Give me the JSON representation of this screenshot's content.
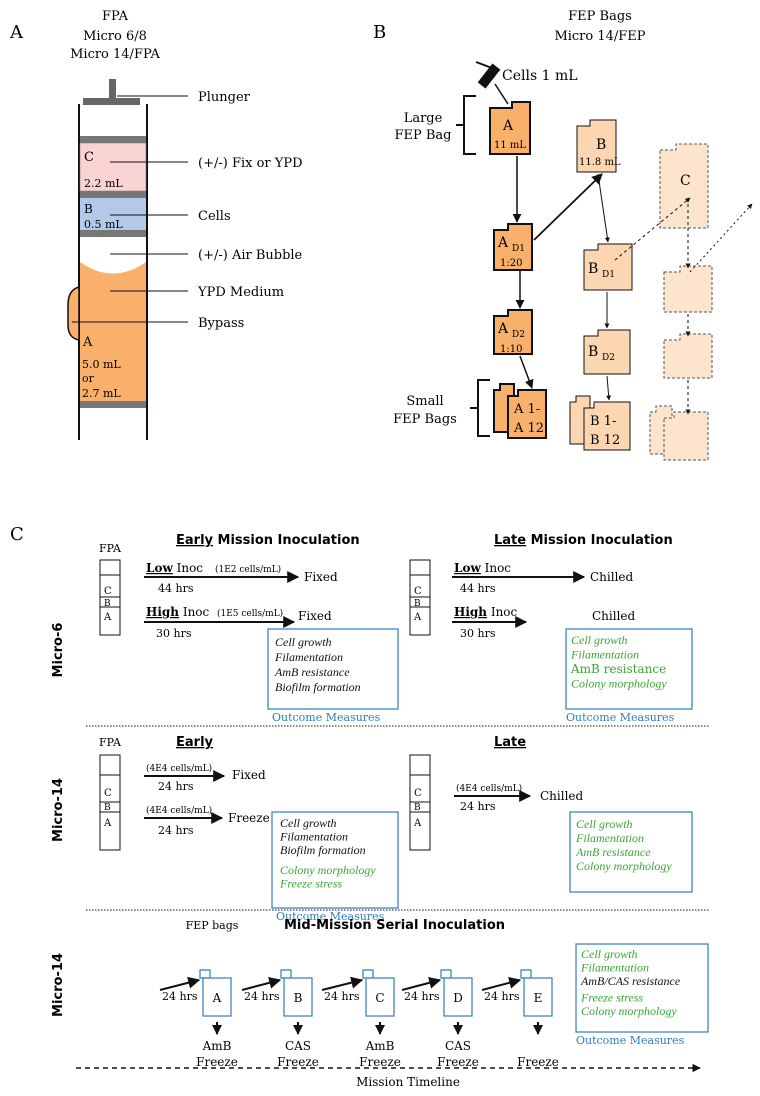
{
  "panel_a": {
    "letter": "A",
    "title": "FPA",
    "subtitle1": "Micro 6/8",
    "subtitle2": "Micro 14/FPA",
    "chamber_c_letter": "C",
    "chamber_c_volume": "2.2 mL",
    "chamber_b_letter": "B",
    "chamber_b_volume": "0.5 mL",
    "chamber_a_letter": "A",
    "chamber_a_volume1": "5.0 mL",
    "chamber_a_volume2": "or",
    "chamber_a_volume3": "2.7 mL",
    "labels": {
      "plunger": "Plunger",
      "fix": "(+/-) Fix or YPD",
      "cells": "Cells",
      "bubble": "(+/-) Air Bubble",
      "medium": "YPD Medium",
      "bypass": "Bypass"
    }
  },
  "panel_b": {
    "letter": "B",
    "title": "FEP Bags",
    "subtitle": "Micro 14/FEP",
    "syringe_label": "Cells 1 mL",
    "large_label1": "Large",
    "large_label2": "FEP Bag",
    "small_label1": "Small",
    "small_label2": "FEP Bags",
    "bag_a": {
      "letter": "A",
      "volume": "11 mL"
    },
    "bag_a_d1": {
      "letter": "A",
      "sub": "D1",
      "dilution": "1:20"
    },
    "bag_a_d2": {
      "letter": "A",
      "sub": "D2",
      "dilution": "1:10"
    },
    "bag_a_small": {
      "line1": "A 1-",
      "line2": "A 12"
    },
    "bag_b": {
      "letter": "B",
      "volume": "11.8 mL"
    },
    "bag_b_d1": {
      "letter": "B",
      "sub": "D1"
    },
    "bag_b_d2": {
      "letter": "B",
      "sub": "D2"
    },
    "bag_b_small": {
      "line1": "B 1-",
      "line2": "B 12"
    },
    "bag_c": {
      "letter": "C"
    }
  },
  "panel_c": {
    "letter": "C",
    "colors": {
      "black": "#111111",
      "green": "#3aa636",
      "blue": "#2e7cc0"
    },
    "section1": {
      "side_label": "Micro-6",
      "fpa_label": "FPA",
      "early_title_bold": "Early",
      "early_title_rest": " Mission Inoculation",
      "late_title_bold": "Late",
      "late_title_rest": " Mission Inoculation",
      "low_bold": "Low",
      "low_rest": " Inoc",
      "low_conc": "(1E2 cells/mL)",
      "low_hours": "44 hrs",
      "low_result": "Fixed",
      "high_bold": "High",
      "high_rest": " Inoc",
      "high_conc": "(1E5 cells/mL)",
      "high_hours": "30 hrs",
      "high_result": "Fixed",
      "late_low_bold": "Low",
      "late_low_rest": " Inoc",
      "late_low_hours": "44 hrs",
      "late_low_result": "Chilled",
      "late_high_bold": "High",
      "late_high_rest": " Inoc",
      "late_high_hours": "30 hrs",
      "late_high_result": "Chilled",
      "early_outcomes": [
        {
          "text": "Cell growth",
          "color": "black",
          "italic": true
        },
        {
          "text": "Filamentation",
          "color": "black",
          "italic": true
        },
        {
          "text": "AmB resistance",
          "color": "black",
          "italic": true
        },
        {
          "text": "Biofilm formation",
          "color": "black",
          "italic": true
        }
      ],
      "late_outcomes": [
        {
          "text": "Cell growth",
          "color": "green",
          "italic": true
        },
        {
          "text": "Filamentation",
          "color": "green",
          "italic": true
        },
        {
          "text": "AmB resistance",
          "color": "green",
          "italic": false
        },
        {
          "text": "Colony morphology",
          "color": "green",
          "italic": true
        }
      ],
      "outcome_label": "Outcome Measures"
    },
    "section2": {
      "side_label": "Micro-14",
      "fpa_label": "FPA",
      "early_title": "Early",
      "late_title": "Late",
      "conc1": "(4E4 cells/mL)",
      "hours1": "24 hrs",
      "result1": "Fixed",
      "conc2": "(4E4 cells/mL)",
      "hours2": "24 hrs",
      "result2": "Freeze",
      "late_conc": "(4E4 cells/mL)",
      "late_hours": "24 hrs",
      "late_result": "Chilled",
      "early_outcomes": [
        {
          "text": "Cell growth",
          "color": "black",
          "italic": true
        },
        {
          "text": "Filamentation",
          "color": "black",
          "italic": true
        },
        {
          "text": "Biofilm formation",
          "color": "black",
          "italic": true
        },
        {
          "text": "Colony morphology",
          "color": "green",
          "italic": true
        },
        {
          "text": "Freeze stress",
          "color": "green",
          "italic": true
        }
      ],
      "late_outcomes": [
        {
          "text": "Cell growth",
          "color": "green",
          "italic": true
        },
        {
          "text": "Filamentation",
          "color": "green",
          "italic": true
        },
        {
          "text": "AmB resistance",
          "color": "green",
          "italic": true
        },
        {
          "text": "Colony morphology",
          "color": "green",
          "italic": true
        }
      ],
      "outcome_label": "Outcome Measures"
    },
    "section3": {
      "side_label": "Micro-14",
      "fep_label": "FEP bags",
      "title": "Mid-Mission Serial Inoculation",
      "hours": [
        "24 hrs",
        "24 hrs",
        "24 hrs",
        "24 hrs",
        "24 hrs"
      ],
      "bags": [
        {
          "letter": "A",
          "drug": "AmB",
          "action": "Freeze"
        },
        {
          "letter": "B",
          "drug": "CAS",
          "action": "Freeze"
        },
        {
          "letter": "C",
          "drug": "AmB",
          "action": "Freeze"
        },
        {
          "letter": "D",
          "drug": "CAS",
          "action": "Freeze"
        },
        {
          "letter": "E",
          "drug": "",
          "action": "Freeze"
        }
      ],
      "outcomes": [
        {
          "text": "Cell growth",
          "color": "green",
          "italic": true
        },
        {
          "text": "Filamentation",
          "color": "green",
          "italic": true
        },
        {
          "text": "AmB/CAS resistance",
          "color": "black",
          "italic": true
        },
        {
          "text": "Freeze stress",
          "color": "green",
          "italic": true
        },
        {
          "text": "Colony morphology",
          "color": "green",
          "italic": true
        }
      ],
      "outcome_label": "Outcome Measures"
    },
    "timeline_label": "Mission Timeline"
  }
}
